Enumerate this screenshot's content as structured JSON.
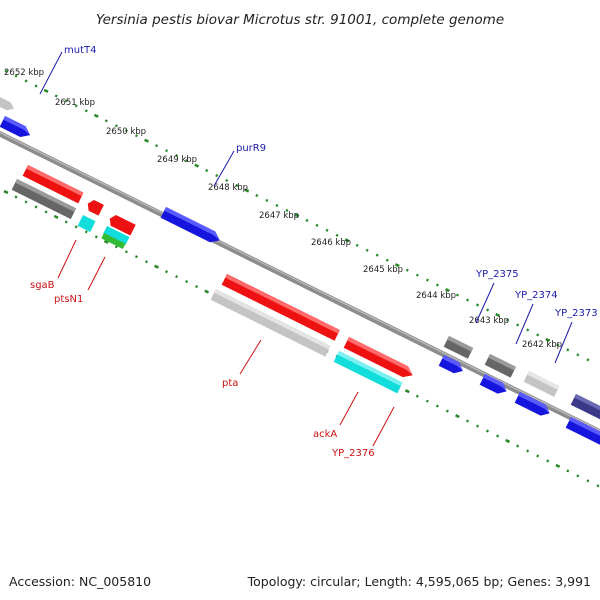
{
  "title": "Yersinia pestis biovar Microtus str. 91001, complete genome",
  "footer": {
    "accession": "Accession: NC_005810",
    "summary": "Topology: circular; Length: 4,595,065 bp; Genes: 3,991"
  },
  "colors": {
    "background": "#ffffff",
    "backbone": "#8c8c8c",
    "tick": "#2a8a2a",
    "forward_label": "#1a1aaa",
    "reverse_label": "#cc1111",
    "red_feature": "#ee1111",
    "blue_feature": "#1515dd",
    "cyan_feature": "#11dddd",
    "green_feature": "#33bb33",
    "dark_gray_feature": "#666666",
    "light_gray_feature": "#c4c4c4",
    "navy_feature": "#3a3a88"
  },
  "map": {
    "position_labels": [
      "2652 kbp",
      "2651 kbp",
      "2650 kbp",
      "2649 kbp",
      "2648 kbp",
      "2647 kbp",
      "2646 kbp",
      "2645 kbp",
      "2644 kbp",
      "2643 kbp",
      "2642 kbp"
    ],
    "forward_gene_labels": [
      "mutT4",
      "purR9",
      "YP_2375",
      "YP_2374",
      "YP_2373"
    ],
    "reverse_gene_labels": [
      "sgaB",
      "ptsN1",
      "pta",
      "ackA",
      "YP_2376"
    ]
  }
}
